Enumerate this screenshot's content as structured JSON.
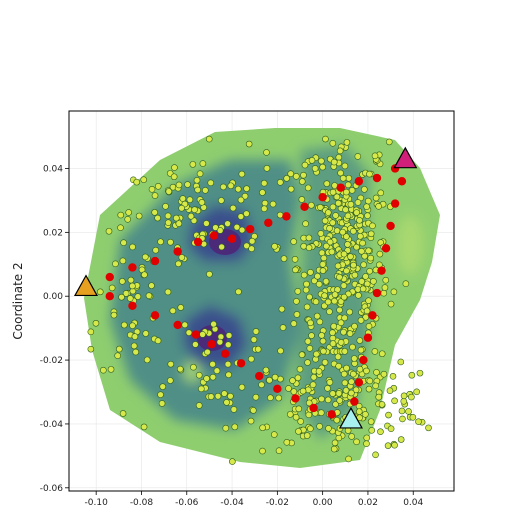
{
  "chart_data": {
    "type": "scatter",
    "title": "",
    "xlabel": "",
    "ylabel": "Coordinate 2",
    "xlim": [
      -0.112,
      0.058
    ],
    "ylim": [
      -0.061,
      0.058
    ],
    "x_ticks": [
      "-0.10",
      "-0.08",
      "-0.06",
      "-0.04",
      "-0.02",
      "0.00",
      "0.02",
      "0.04"
    ],
    "x_tick_values": [
      -0.1,
      -0.08,
      -0.06,
      -0.04,
      -0.02,
      0.0,
      0.02,
      0.04
    ],
    "y_ticks": [
      "0.04",
      "0.02",
      "0.00",
      "-0.02",
      "-0.04",
      "-0.06"
    ],
    "y_tick_values": [
      0.04,
      0.02,
      0.0,
      -0.02,
      -0.04,
      -0.06
    ],
    "grid": true,
    "legend": "none",
    "background": "filled contour density map (viridis)",
    "colors": {
      "contour_light": "#8fce6f",
      "contour_mid": "#4f8f86",
      "contour_dark": "#3b4f8c",
      "contour_darkest": "#4b2a7a",
      "point_fill": "#d6e84a",
      "point_edge": "#2f5d1f",
      "path": "#e00000",
      "start_triangle": "#e8a020",
      "end_triangle_magenta": "#d0207a",
      "end_triangle_cyan": "#a8f0f0"
    },
    "triangles": [
      {
        "x": -0.1045,
        "y": 0.003,
        "color": "#e8a020"
      },
      {
        "x": 0.0365,
        "y": 0.043,
        "color": "#d0207a"
      },
      {
        "x": 0.0125,
        "y": -0.0385,
        "color": "#a8f0f0"
      }
    ],
    "paths": [
      {
        "from": "start",
        "to": "magenta",
        "x": [
          -0.1045,
          -0.094,
          -0.084,
          -0.074,
          -0.064,
          -0.055,
          -0.048,
          -0.04,
          -0.032,
          -0.024,
          -0.016,
          -0.008,
          0.0,
          0.008,
          0.016,
          0.024,
          0.032,
          0.0365
        ],
        "y": [
          0.003,
          0.006,
          0.009,
          0.011,
          0.014,
          0.017,
          0.019,
          0.018,
          0.021,
          0.023,
          0.025,
          0.028,
          0.031,
          0.034,
          0.036,
          0.037,
          0.04,
          0.043
        ]
      },
      {
        "from": "start",
        "to": "cyan",
        "x": [
          -0.1045,
          -0.094,
          -0.084,
          -0.074,
          -0.064,
          -0.056,
          -0.049,
          -0.043,
          -0.036,
          -0.028,
          -0.02,
          -0.012,
          -0.004,
          0.004,
          0.0125
        ],
        "y": [
          0.003,
          0.0,
          -0.003,
          -0.006,
          -0.009,
          -0.012,
          -0.015,
          -0.018,
          -0.021,
          -0.025,
          -0.029,
          -0.032,
          -0.035,
          -0.037,
          -0.0385
        ]
      },
      {
        "from": "magenta",
        "to": "cyan",
        "x": [
          0.0365,
          0.035,
          0.032,
          0.03,
          0.028,
          0.026,
          0.024,
          0.022,
          0.02,
          0.018,
          0.016,
          0.014,
          0.0125
        ],
        "y": [
          0.043,
          0.036,
          0.029,
          0.022,
          0.015,
          0.008,
          0.001,
          -0.006,
          -0.013,
          -0.02,
          -0.027,
          -0.033,
          -0.0385
        ]
      }
    ],
    "point_clusters": [
      {
        "cx": 0.009,
        "cy": 0.01,
        "sx": 0.01,
        "sy": 0.022,
        "n": 420
      },
      {
        "cx": 0.01,
        "cy": -0.034,
        "sx": 0.022,
        "sy": 0.007,
        "n": 160
      },
      {
        "cx": -0.06,
        "cy": 0.025,
        "sx": 0.014,
        "sy": 0.01,
        "n": 80
      },
      {
        "cx": -0.085,
        "cy": 0.0,
        "sx": 0.007,
        "sy": 0.014,
        "n": 50
      },
      {
        "cx": -0.05,
        "cy": -0.022,
        "sx": 0.02,
        "sy": 0.01,
        "n": 70
      },
      {
        "cx": -0.03,
        "cy": 0.03,
        "sx": 0.012,
        "sy": 0.01,
        "n": 35
      }
    ]
  }
}
